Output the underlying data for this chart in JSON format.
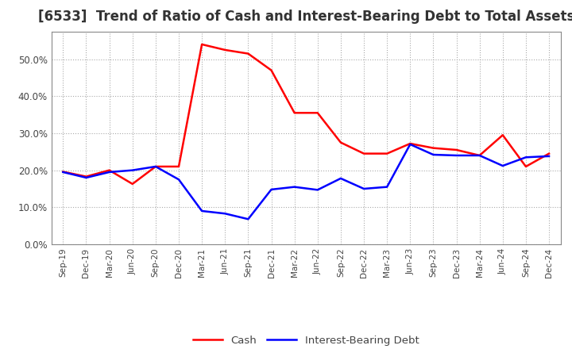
{
  "title": "[6533]  Trend of Ratio of Cash and Interest-Bearing Debt to Total Assets",
  "x_labels": [
    "Sep-19",
    "Dec-19",
    "Mar-20",
    "Jun-20",
    "Sep-20",
    "Dec-20",
    "Mar-21",
    "Jun-21",
    "Sep-21",
    "Dec-21",
    "Mar-22",
    "Jun-22",
    "Sep-22",
    "Dec-22",
    "Mar-23",
    "Jun-23",
    "Sep-23",
    "Dec-23",
    "Mar-24",
    "Jun-24",
    "Sep-24",
    "Dec-24"
  ],
  "cash": [
    0.196,
    0.183,
    0.2,
    0.163,
    0.21,
    0.21,
    0.54,
    0.525,
    0.515,
    0.47,
    0.355,
    0.355,
    0.275,
    0.245,
    0.245,
    0.272,
    0.26,
    0.255,
    0.24,
    0.295,
    0.21,
    0.245
  ],
  "ibd": [
    0.195,
    0.18,
    0.195,
    0.2,
    0.21,
    0.175,
    0.09,
    0.083,
    0.068,
    0.148,
    0.155,
    0.147,
    0.178,
    0.15,
    0.155,
    0.27,
    0.242,
    0.24,
    0.24,
    0.212,
    0.235,
    0.238
  ],
  "cash_color": "#ff0000",
  "ibd_color": "#0000ff",
  "ylim": [
    0.0,
    0.575
  ],
  "yticks": [
    0.0,
    0.1,
    0.2,
    0.3,
    0.4,
    0.5
  ],
  "background_color": "#ffffff",
  "plot_bg_color": "#ffffff",
  "grid_color": "#aaaaaa",
  "title_fontsize": 12,
  "title_color": "#333333",
  "tick_color": "#444444",
  "legend_cash": "Cash",
  "legend_ibd": "Interest-Bearing Debt",
  "line_width": 1.8
}
